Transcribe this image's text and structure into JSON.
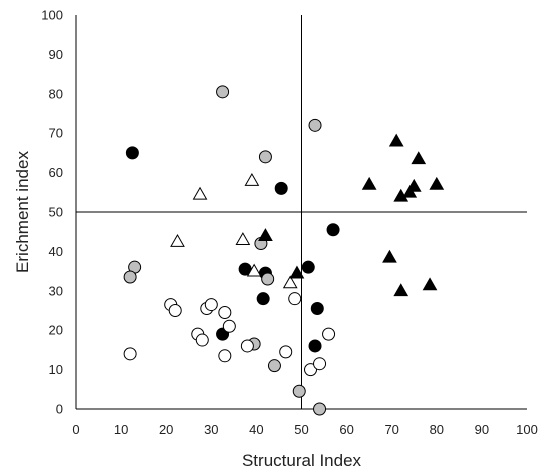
{
  "chart_data": {
    "type": "scatter",
    "title": "",
    "xlabel": "Structural Index",
    "ylabel": "Erichment index",
    "xlim": [
      0,
      100
    ],
    "ylim": [
      0,
      100
    ],
    "xticks": [
      0,
      10,
      20,
      30,
      40,
      50,
      60,
      70,
      80,
      90,
      100
    ],
    "yticks": [
      0,
      10,
      20,
      30,
      40,
      50,
      60,
      70,
      80,
      90,
      100
    ],
    "grid": false,
    "reference_lines": {
      "x": 50,
      "y": 50
    },
    "colors": {
      "filled": "#000000",
      "gray": "#bfbfbf",
      "open": "#ffffff",
      "edge": "#000000"
    },
    "series": [
      {
        "marker": "circle",
        "fill": "filled",
        "points": [
          [
            12.5,
            65
          ],
          [
            45.5,
            56
          ],
          [
            57,
            45.5
          ],
          [
            37.5,
            35.5
          ],
          [
            42,
            34.5
          ],
          [
            51.5,
            36
          ],
          [
            41.5,
            28
          ],
          [
            53.5,
            25.5
          ],
          [
            53,
            16
          ],
          [
            32.5,
            19
          ]
        ]
      },
      {
        "marker": "circle",
        "fill": "gray",
        "points": [
          [
            32.5,
            80.5
          ],
          [
            53,
            72
          ],
          [
            42,
            64
          ],
          [
            41,
            42
          ],
          [
            13,
            36
          ],
          [
            12,
            33.5
          ],
          [
            42.5,
            33
          ],
          [
            39.5,
            16.5
          ],
          [
            44,
            11
          ],
          [
            49.5,
            4.5
          ],
          [
            54,
            0
          ]
        ]
      },
      {
        "marker": "circle",
        "fill": "open",
        "points": [
          [
            21,
            26.5
          ],
          [
            22,
            25
          ],
          [
            29,
            25.5
          ],
          [
            30,
            26.5
          ],
          [
            33,
            24.5
          ],
          [
            34,
            21
          ],
          [
            27,
            19
          ],
          [
            28,
            17.5
          ],
          [
            38,
            16
          ],
          [
            33,
            13.5
          ],
          [
            46.5,
            14.5
          ],
          [
            48.5,
            28
          ],
          [
            56,
            19
          ],
          [
            52,
            10
          ],
          [
            54,
            11.5
          ],
          [
            12,
            14
          ]
        ]
      },
      {
        "marker": "triangle",
        "fill": "open",
        "points": [
          [
            27.5,
            54.5
          ],
          [
            39,
            58
          ],
          [
            22.5,
            42.5
          ],
          [
            37,
            43
          ],
          [
            39.5,
            35
          ],
          [
            47.5,
            32
          ]
        ]
      },
      {
        "marker": "triangle",
        "fill": "filled",
        "points": [
          [
            71,
            68
          ],
          [
            76,
            63.5
          ],
          [
            65,
            57
          ],
          [
            72,
            54
          ],
          [
            74,
            55
          ],
          [
            75,
            56.5
          ],
          [
            80,
            57
          ],
          [
            42,
            44
          ],
          [
            49,
            34.5
          ],
          [
            69.5,
            38.5
          ],
          [
            72,
            30
          ],
          [
            78.5,
            31.5
          ]
        ]
      }
    ]
  }
}
